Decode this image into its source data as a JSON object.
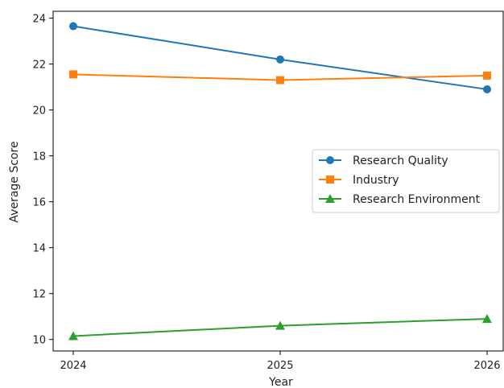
{
  "chart_data": {
    "type": "line",
    "title": "",
    "xlabel": "Year",
    "ylabel": "Average Score",
    "x": [
      2024,
      2025,
      2026
    ],
    "xticks": [
      "2024",
      "2025",
      "2026"
    ],
    "yticks": [
      10,
      12,
      14,
      16,
      18,
      20,
      22,
      24
    ],
    "ylim": [
      9.5,
      24.3
    ],
    "grid": false,
    "legend": "center-right",
    "series": [
      {
        "name": "Research Quality",
        "values": [
          23.65,
          22.2,
          20.9
        ],
        "color": "#1f77b4",
        "marker": "circle"
      },
      {
        "name": "Industry",
        "values": [
          21.55,
          21.3,
          21.5
        ],
        "color": "#ff7f0e",
        "marker": "square"
      },
      {
        "name": "Research Environment",
        "values": [
          10.15,
          10.6,
          10.9
        ],
        "color": "#2ca02c",
        "marker": "triangle"
      }
    ]
  }
}
